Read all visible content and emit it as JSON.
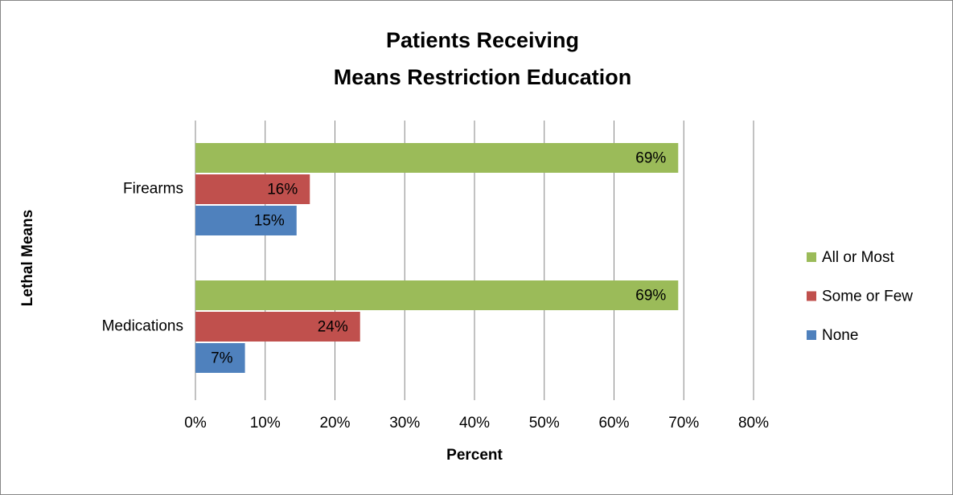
{
  "chart_data": {
    "type": "bar",
    "orientation": "horizontal",
    "title": [
      "Patients Receiving",
      "Means Restriction Education"
    ],
    "xlabel": "Percent",
    "ylabel": "Lethal Means",
    "categories": [
      "Firearms",
      "Medications"
    ],
    "series": [
      {
        "name": "All or Most",
        "color": "#9bbb59",
        "values": [
          69.2,
          69.2
        ],
        "value_labels": [
          "69%",
          "69%"
        ]
      },
      {
        "name": "Some or Few",
        "color": "#c0504d",
        "values": [
          16.4,
          23.6
        ],
        "value_labels": [
          "16%",
          "24%"
        ]
      },
      {
        "name": "None",
        "color": "#4f81bd",
        "values": [
          14.5,
          7.1
        ],
        "value_labels": [
          "15%",
          "7%"
        ]
      }
    ],
    "xlim": [
      0,
      80
    ],
    "xticks": [
      {
        "value": 0,
        "label": "0%"
      },
      {
        "value": 10,
        "label": "10%"
      },
      {
        "value": 20,
        "label": "20%"
      },
      {
        "value": 30,
        "label": "30%"
      },
      {
        "value": 40,
        "label": "40%"
      },
      {
        "value": 50,
        "label": "50%"
      },
      {
        "value": 60,
        "label": "60%"
      },
      {
        "value": 70,
        "label": "70%"
      },
      {
        "value": 80,
        "label": "80%"
      }
    ],
    "grid": true,
    "legend": "right"
  }
}
